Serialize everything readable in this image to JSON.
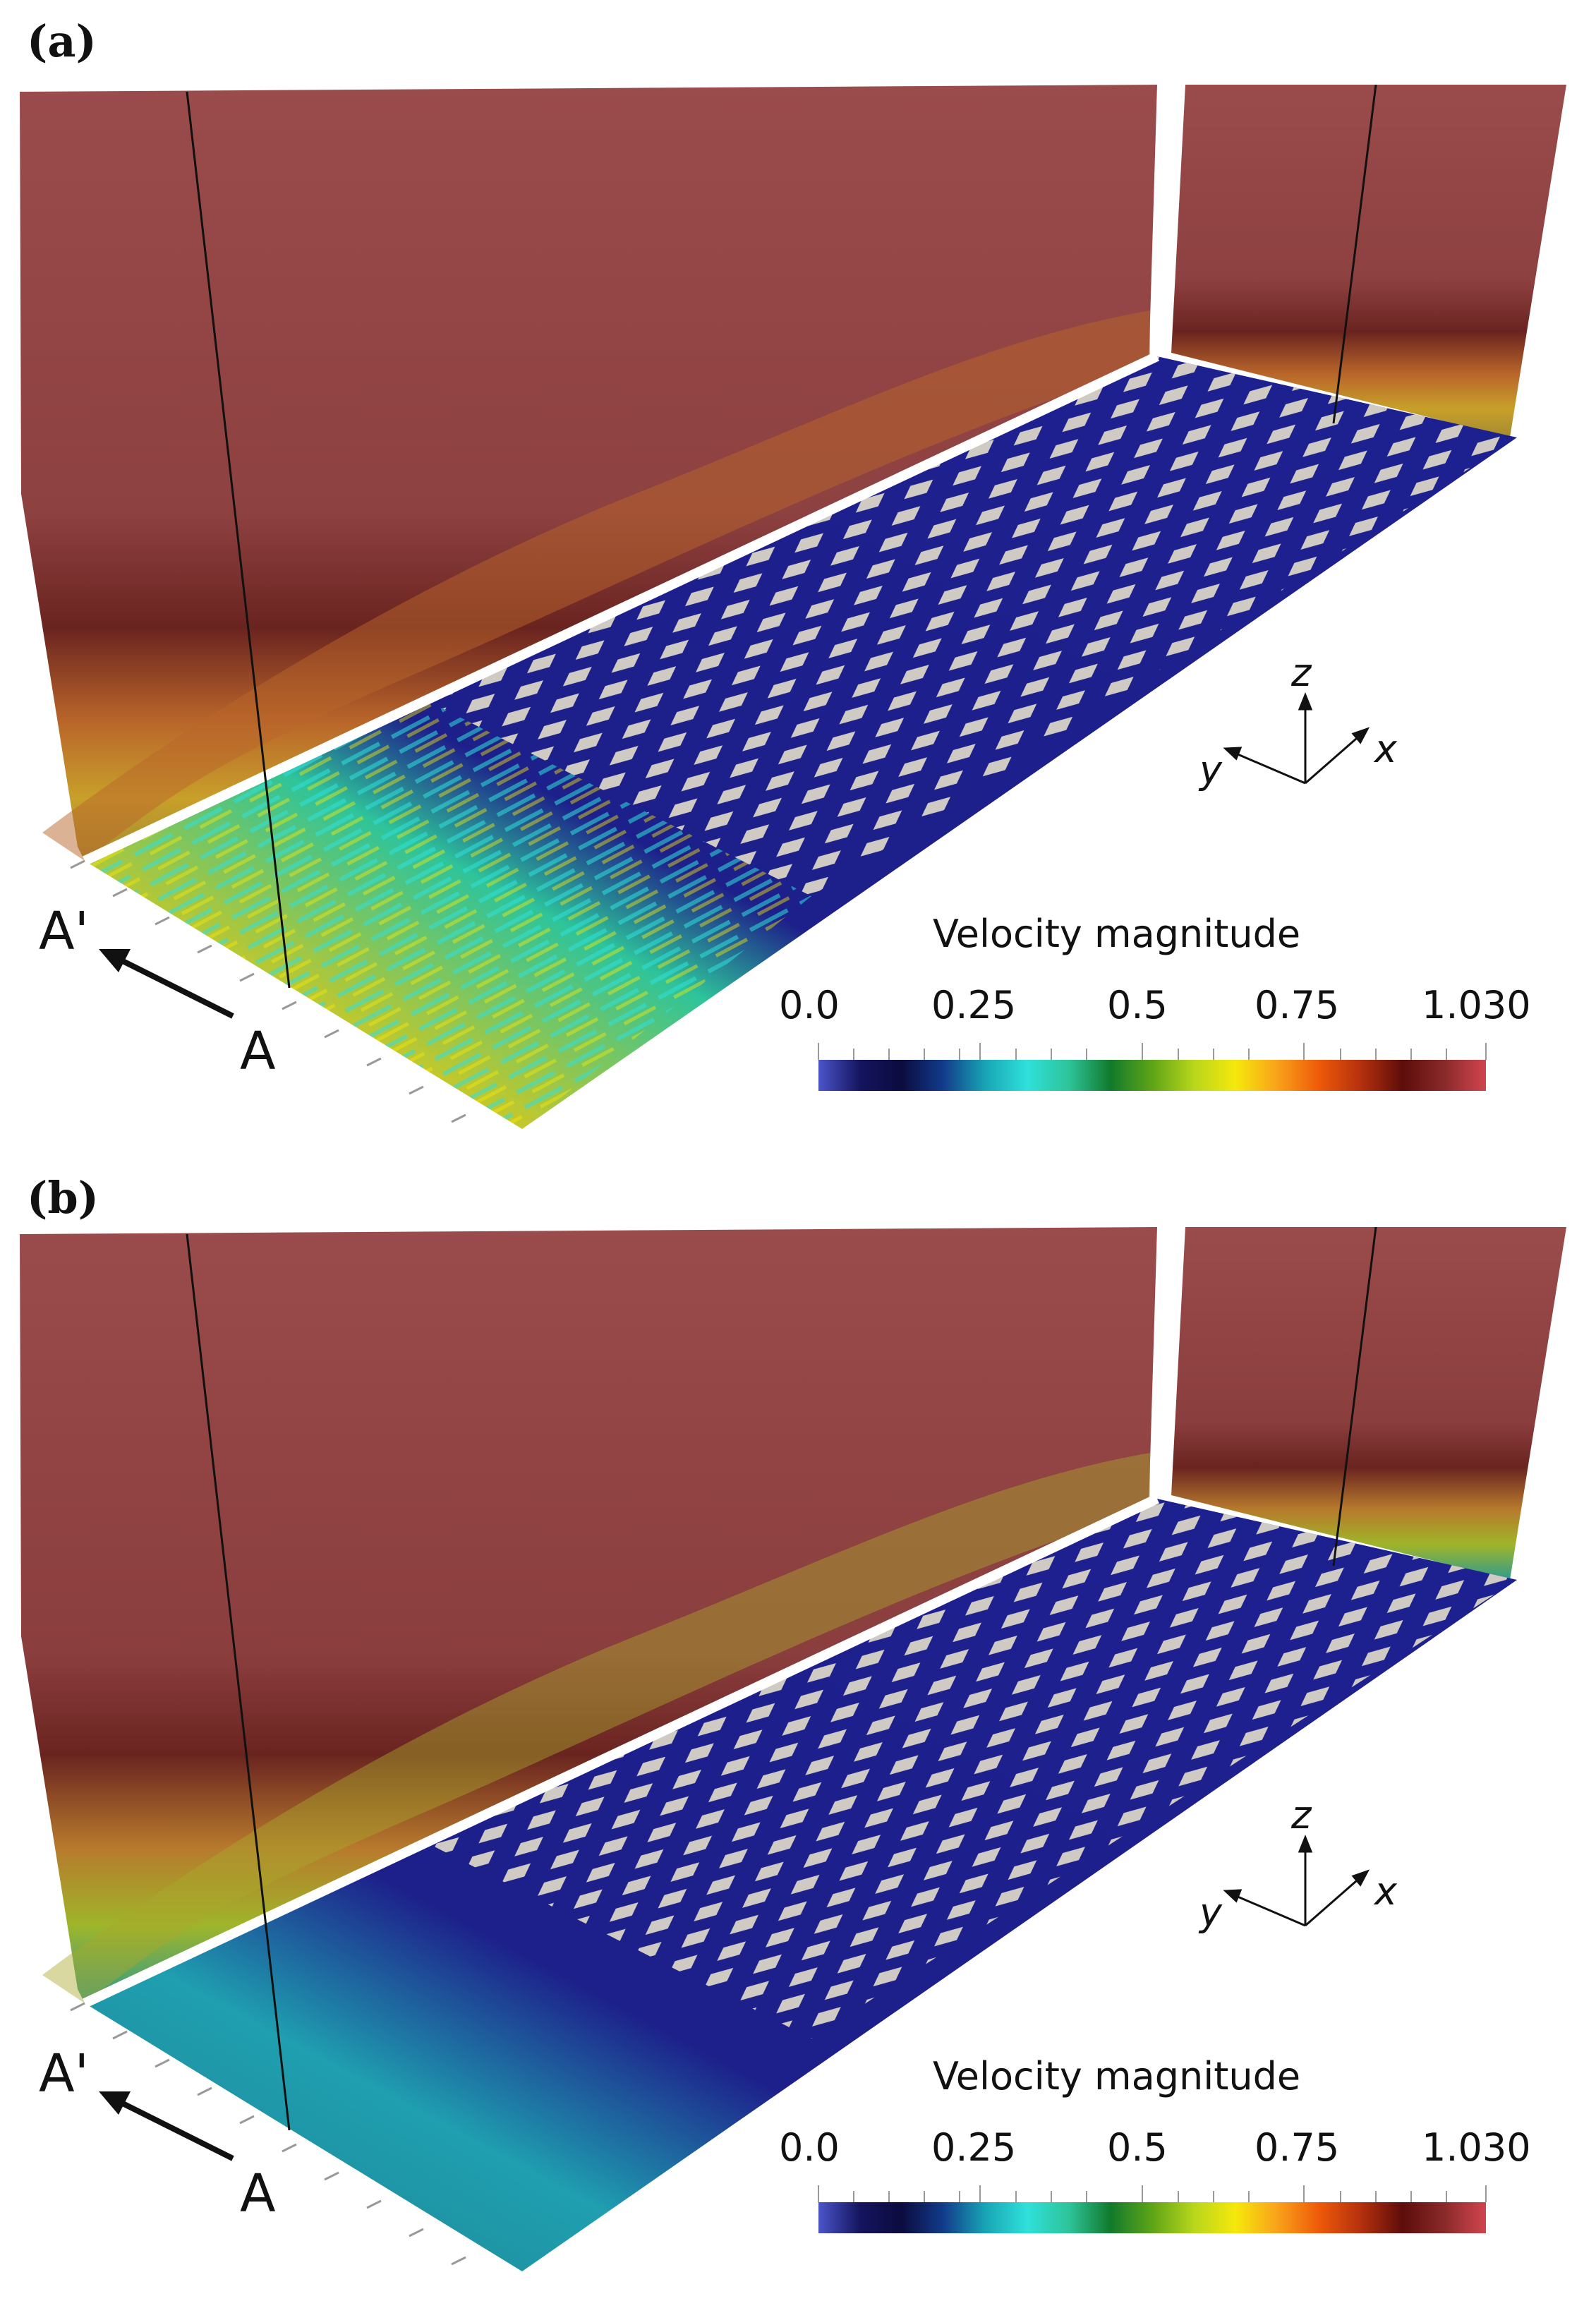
{
  "panels": [
    {
      "label": "(a)",
      "colorbar": {
        "title": "Velocity magnitude",
        "ticks": [
          "0.0",
          "0.25",
          "0.5",
          "0.75",
          "1.030"
        ]
      },
      "axes": {
        "z": "z",
        "y": "y",
        "x": "x"
      },
      "section": {
        "start": "A",
        "end": "A'"
      },
      "floor_state": "energetic"
    },
    {
      "label": "(b)",
      "colorbar": {
        "title": "Velocity magnitude",
        "ticks": [
          "0.0",
          "0.25",
          "0.5",
          "0.75",
          "1.030"
        ]
      },
      "axes": {
        "z": "z",
        "y": "y",
        "x": "x"
      },
      "section": {
        "start": "A",
        "end": "A'"
      },
      "floor_state": "calm"
    }
  ],
  "colormap": [
    "#4b55c9",
    "#14145f",
    "#0b0b3f",
    "#123c8c",
    "#18a5b5",
    "#2fe0da",
    "#2ec49a",
    "#117a2c",
    "#5ea417",
    "#b8d61c",
    "#f5e80c",
    "#f9a21a",
    "#ee5a0a",
    "#b5300d",
    "#5d0d0a",
    "#8a2a2a",
    "#d1444f"
  ],
  "colors": {
    "wall": "#9a4b4b",
    "floor_dark": "#1d1f8a",
    "block": "#cfcbc4"
  }
}
